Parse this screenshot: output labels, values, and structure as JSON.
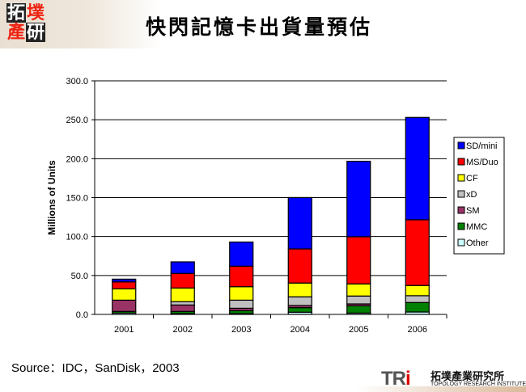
{
  "slide": {
    "title": "快閃記憶卡出貨量預估",
    "logo_text": "拓墣產研",
    "source": "Source：IDC，SanDisk，2003",
    "footer_logo": "TRI",
    "footer_name_cn": "拓墣產業研究所",
    "footer_name_en": "TOPOLOGY RESEARCH INSTITUTE"
  },
  "chart_data": {
    "type": "bar",
    "stacked": true,
    "title": "",
    "xlabel": "",
    "ylabel": "Millions of Units",
    "ylim": [
      0,
      300
    ],
    "yticks": [
      "0.0",
      "50.0",
      "100.0",
      "150.0",
      "200.0",
      "250.0",
      "300.0"
    ],
    "grid": true,
    "legend_position": "right",
    "categories": [
      "2001",
      "2002",
      "2003",
      "2004",
      "2005",
      "2006"
    ],
    "series": [
      {
        "name": "Other",
        "color": "#ccffff",
        "values": [
          1.7,
          1.0,
          1.0,
          2.8,
          1.7,
          3.1
        ]
      },
      {
        "name": "MMC",
        "color": "#008000",
        "values": [
          2.1,
          2.8,
          3.8,
          5.9,
          9.4,
          12.2
        ]
      },
      {
        "name": "SM",
        "color": "#993366",
        "values": [
          14.5,
          8.3,
          3.1,
          2.8,
          2.4,
          0
        ]
      },
      {
        "name": "xD",
        "color": "#c0c0c0",
        "values": [
          0,
          4.2,
          10.4,
          11.1,
          10.1,
          8.7
        ]
      },
      {
        "name": "CF",
        "color": "#ffff00",
        "values": [
          14.5,
          17.6,
          17.3,
          17.7,
          15.6,
          13.2
        ]
      },
      {
        "name": "MS/Duo",
        "color": "#ff0000",
        "values": [
          9.0,
          18.7,
          26.3,
          43.8,
          60.5,
          84.3
        ]
      },
      {
        "name": "SD/mini",
        "color": "#0000ff",
        "values": [
          3.5,
          14.9,
          31.1,
          66.0,
          97.0,
          131.5
        ]
      }
    ]
  }
}
